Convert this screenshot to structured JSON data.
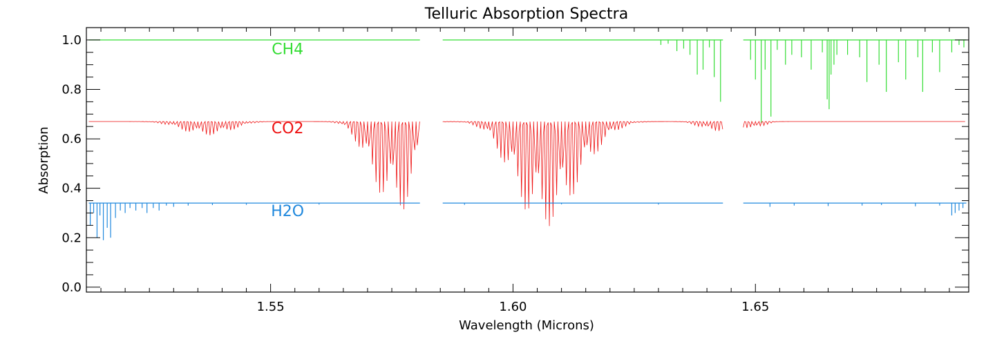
{
  "chart_data": {
    "type": "line",
    "title": "Telluric Absorption Spectra",
    "xlabel": "Wavelength (Microns)",
    "ylabel": "Absorption",
    "xlim": [
      1.512,
      1.694
    ],
    "ylim": [
      -0.02,
      1.05
    ],
    "xticks": [
      1.55,
      1.6,
      1.65
    ],
    "xtick_labels": [
      "1.55",
      "1.60",
      "1.65"
    ],
    "x_minor_step": 0.005,
    "yticks": [
      0.0,
      0.2,
      0.4,
      0.6,
      0.8,
      1.0
    ],
    "ytick_labels": [
      "0.0",
      "0.2",
      "0.4",
      "0.6",
      "0.8",
      "1.0"
    ],
    "y_minor_step": 0.05,
    "segments": [
      [
        1.5125,
        1.5808
      ],
      [
        1.5855,
        1.6433
      ],
      [
        1.6475,
        1.6935
      ]
    ],
    "series": [
      {
        "name": "CH4",
        "label": "CH4",
        "color": "#33dd33",
        "baseline": 1.0,
        "label_position": [
          1.5535,
          0.965
        ],
        "lines": [
          [
            1.6305,
            0.98
          ],
          [
            1.632,
            0.985
          ],
          [
            1.6338,
            0.955
          ],
          [
            1.6352,
            0.965
          ],
          [
            1.6365,
            0.94
          ],
          [
            1.638,
            0.86
          ],
          [
            1.6392,
            0.88
          ],
          [
            1.6405,
            0.97
          ],
          [
            1.6415,
            0.85
          ],
          [
            1.6428,
            0.75
          ],
          [
            1.649,
            0.92
          ],
          [
            1.65,
            0.84
          ],
          [
            1.6512,
            0.665
          ],
          [
            1.652,
            0.88
          ],
          [
            1.6532,
            0.69
          ],
          [
            1.6545,
            0.96
          ],
          [
            1.6562,
            0.9
          ],
          [
            1.6575,
            0.94
          ],
          [
            1.6595,
            0.93
          ],
          [
            1.6615,
            0.88
          ],
          [
            1.6638,
            0.95
          ],
          [
            1.6648,
            0.76
          ],
          [
            1.6652,
            0.72
          ],
          [
            1.6656,
            0.86
          ],
          [
            1.6662,
            0.9
          ],
          [
            1.6668,
            0.94
          ],
          [
            1.669,
            0.94
          ],
          [
            1.6715,
            0.93
          ],
          [
            1.673,
            0.83
          ],
          [
            1.6755,
            0.9
          ],
          [
            1.677,
            0.79
          ],
          [
            1.6795,
            0.91
          ],
          [
            1.681,
            0.84
          ],
          [
            1.6835,
            0.93
          ],
          [
            1.6845,
            0.79
          ],
          [
            1.6865,
            0.95
          ],
          [
            1.688,
            0.87
          ],
          [
            1.6905,
            0.95
          ],
          [
            1.692,
            0.98
          ],
          [
            1.693,
            0.97
          ]
        ]
      },
      {
        "name": "CO2",
        "label": "CO2",
        "color": "#ee1111",
        "baseline": 0.67,
        "label_position": [
          1.5535,
          0.645
        ],
        "bands": [
          {
            "center": 1.5343,
            "width": 0.0055,
            "depth": 0.04
          },
          {
            "center": 1.54,
            "width": 0.005,
            "depth": 0.035
          },
          {
            "center": 1.573,
            "width": 0.005,
            "depth": 0.27
          },
          {
            "center": 1.578,
            "width": 0.0035,
            "depth": 0.24
          },
          {
            "center": 1.603,
            "width": 0.0065,
            "depth": 0.29
          },
          {
            "center": 1.6095,
            "width": 0.006,
            "depth": 0.26
          },
          {
            "center": 1.616,
            "width": 0.006,
            "depth": 0.08
          },
          {
            "center": 1.6415,
            "width": 0.004,
            "depth": 0.04
          },
          {
            "center": 1.6495,
            "width": 0.003,
            "depth": 0.03
          }
        ]
      },
      {
        "name": "H2O",
        "label": "H2O",
        "color": "#1f88dd",
        "baseline": 0.34,
        "label_position": [
          1.5535,
          0.31
        ],
        "lines": [
          [
            1.5128,
            0.25
          ],
          [
            1.5135,
            0.3
          ],
          [
            1.5142,
            0.2
          ],
          [
            1.5148,
            0.29
          ],
          [
            1.5155,
            0.19
          ],
          [
            1.5163,
            0.24
          ],
          [
            1.517,
            0.2
          ],
          [
            1.518,
            0.28
          ],
          [
            1.519,
            0.31
          ],
          [
            1.52,
            0.3
          ],
          [
            1.521,
            0.32
          ],
          [
            1.5222,
            0.31
          ],
          [
            1.5235,
            0.32
          ],
          [
            1.5245,
            0.3
          ],
          [
            1.5258,
            0.32
          ],
          [
            1.527,
            0.31
          ],
          [
            1.5285,
            0.33
          ],
          [
            1.53,
            0.325
          ],
          [
            1.533,
            0.33
          ],
          [
            1.538,
            0.332
          ],
          [
            1.545,
            0.333
          ],
          [
            1.56,
            0.334
          ],
          [
            1.59,
            0.333
          ],
          [
            1.61,
            0.335
          ],
          [
            1.63,
            0.334
          ],
          [
            1.653,
            0.325
          ],
          [
            1.658,
            0.33
          ],
          [
            1.665,
            0.328
          ],
          [
            1.672,
            0.33
          ],
          [
            1.676,
            0.332
          ],
          [
            1.683,
            0.327
          ],
          [
            1.688,
            0.33
          ],
          [
            1.6905,
            0.29
          ],
          [
            1.6912,
            0.3
          ],
          [
            1.692,
            0.31
          ],
          [
            1.6928,
            0.32
          ]
        ]
      }
    ]
  }
}
